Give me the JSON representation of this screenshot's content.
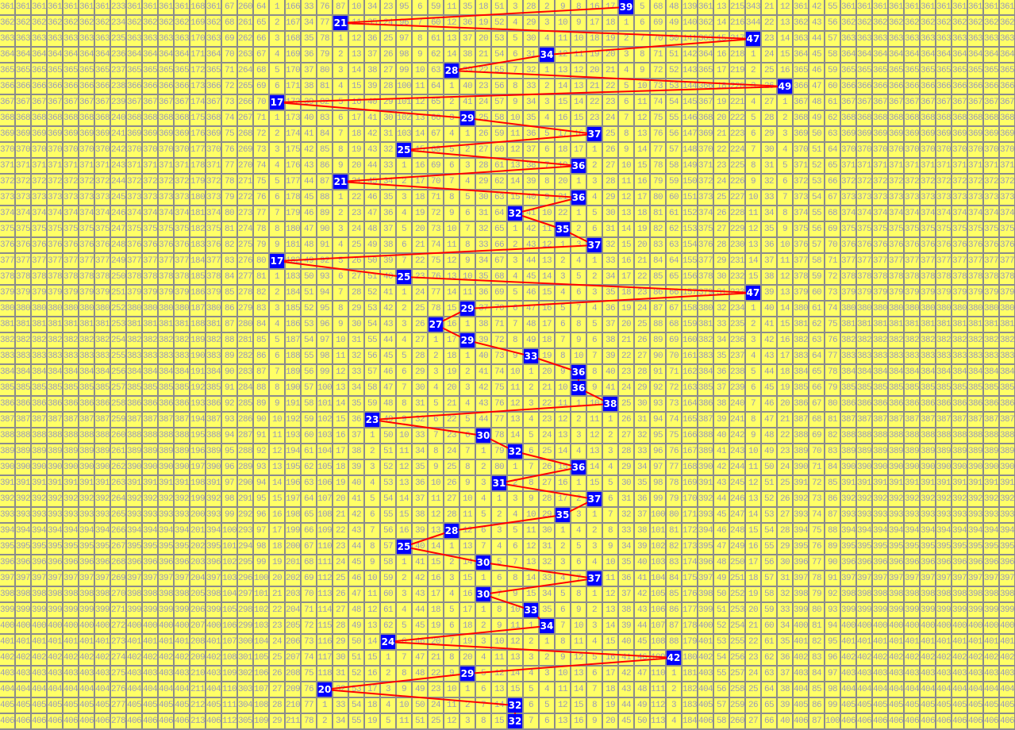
{
  "chart_data": {
    "type": "table",
    "periods": [
      361,
      362,
      363,
      364,
      365,
      366,
      367,
      368,
      369,
      370,
      371,
      372,
      373,
      374,
      375,
      376,
      377,
      378,
      379,
      380,
      381,
      382,
      383,
      384,
      385,
      386,
      387,
      388,
      389,
      390,
      391,
      392,
      393,
      394,
      395,
      396,
      397,
      398,
      399,
      400,
      401,
      402,
      403,
      404,
      405,
      406
    ],
    "first_row": [
      361,
      361,
      361,
      361,
      361,
      361,
      361,
      233,
      361,
      361,
      361,
      361,
      168,
      361,
      67,
      260,
      64,
      1,
      166,
      33,
      76,
      87,
      10,
      34,
      23,
      95,
      6,
      59,
      11,
      35,
      18,
      51,
      3,
      28,
      2,
      9,
      8,
      16,
      17,
      39,
      5,
      68,
      48,
      139,
      361,
      13,
      215,
      343,
      21,
      12,
      361,
      42,
      55,
      361,
      361,
      361,
      361,
      361,
      361,
      361,
      361,
      361,
      361,
      361
    ],
    "draws": [
      39,
      21,
      47,
      34,
      28,
      49,
      17,
      29,
      37,
      25,
      36,
      21,
      36,
      32,
      35,
      37,
      17,
      25,
      47,
      29,
      27,
      29,
      33,
      36,
      36,
      38,
      23,
      30,
      32,
      36,
      31,
      37,
      35,
      28,
      25,
      30,
      37,
      30,
      33,
      34,
      24,
      42,
      29,
      20,
      32,
      32
    ],
    "colors": {
      "cell_bg": "#ffff66",
      "cell_text": "#9a9ab8",
      "grid": "#8c8c8c",
      "hit_bg": "#0000ff",
      "hit_text": "#ffffff",
      "trend_line": "#ff0000"
    }
  }
}
